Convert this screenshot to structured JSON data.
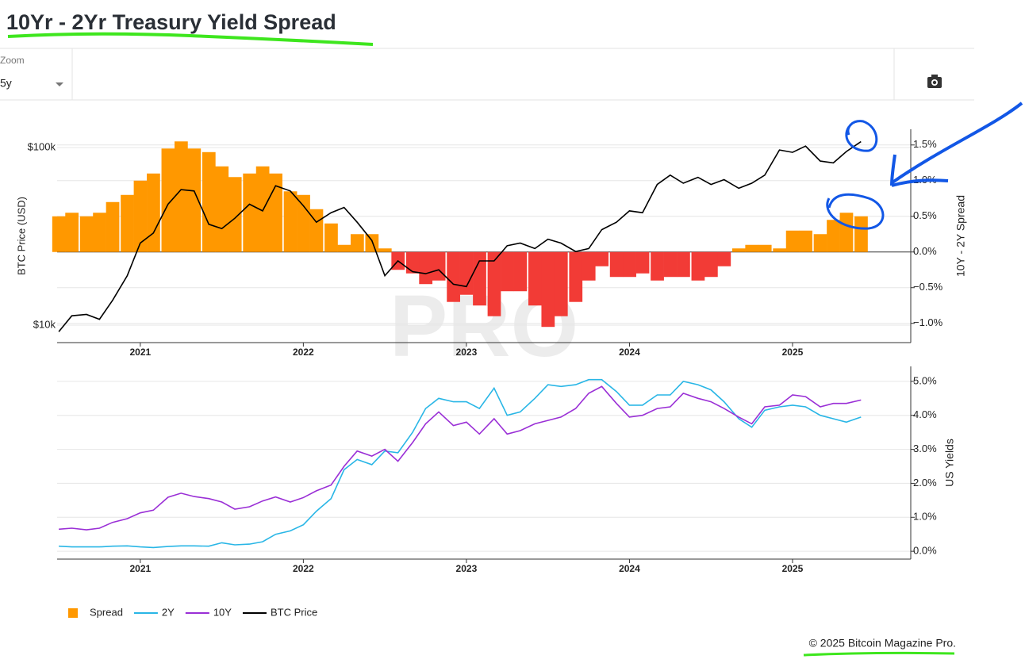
{
  "header": {
    "title": "10Yr - 2Yr Treasury Yield Spread",
    "zoom_label": "Zoom",
    "zoom_value": "5y"
  },
  "watermark": "PRO",
  "chart_data": [
    {
      "type": "combo",
      "x": [
        2020.5,
        2020.58,
        2020.67,
        2020.75,
        2020.83,
        2020.92,
        2021.0,
        2021.08,
        2021.17,
        2021.25,
        2021.33,
        2021.42,
        2021.5,
        2021.58,
        2021.67,
        2021.75,
        2021.83,
        2021.92,
        2022.0,
        2022.08,
        2022.17,
        2022.25,
        2022.33,
        2022.42,
        2022.5,
        2022.58,
        2022.67,
        2022.75,
        2022.83,
        2022.92,
        2023.0,
        2023.08,
        2023.17,
        2023.25,
        2023.33,
        2023.42,
        2023.5,
        2023.58,
        2023.67,
        2023.75,
        2023.83,
        2023.92,
        2024.0,
        2024.08,
        2024.17,
        2024.25,
        2024.33,
        2024.42,
        2024.5,
        2024.58,
        2024.67,
        2024.75,
        2024.83,
        2024.92,
        2025.0,
        2025.08,
        2025.17,
        2025.25,
        2025.33,
        2025.42
      ],
      "xlim": [
        2020.49,
        2025.725
      ],
      "xticks": [
        2021,
        2022,
        2023,
        2024,
        2025
      ],
      "ylim": [
        7980,
        126800
      ],
      "log_scale": "y",
      "yticks": [
        {
          "value": 10000,
          "label": "$10k"
        },
        {
          "value": 100000,
          "label": "$100k"
        }
      ],
      "y_label": "BTC Price (USD)",
      "y2lim": [
        -1.27,
        1.72
      ],
      "y2ticks": [
        {
          "value": -1,
          "label": "−1.0%"
        },
        {
          "value": -0.5,
          "label": "−0.5%"
        },
        {
          "value": 0,
          "label": "0.0%"
        },
        {
          "value": 0.5,
          "label": "0.5%"
        },
        {
          "value": 1,
          "label": "1.0%"
        },
        {
          "value": 1.5,
          "label": "1.5%"
        }
      ],
      "y2_label": "10Y - 2Y Spread",
      "grid": true,
      "legend": "bottom",
      "series": [
        {
          "name": "Spread",
          "type": "bar",
          "axis": "y2",
          "color": "#ff9800",
          "negative_color": "#f23b36",
          "values": [
            0.5,
            0.55,
            0.5,
            0.55,
            0.7,
            0.8,
            1.0,
            1.1,
            1.45,
            1.55,
            1.45,
            1.4,
            1.2,
            1.05,
            1.1,
            1.2,
            1.1,
            0.85,
            0.8,
            0.6,
            0.4,
            0.1,
            0.25,
            0.25,
            0.05,
            -0.25,
            -0.3,
            -0.45,
            -0.4,
            -0.7,
            -0.6,
            -0.75,
            -0.9,
            -0.55,
            -0.55,
            -0.75,
            -1.05,
            -0.9,
            -0.7,
            -0.4,
            -0.2,
            -0.35,
            -0.35,
            -0.3,
            -0.4,
            -0.35,
            -0.35,
            -0.4,
            -0.35,
            -0.2,
            0.05,
            0.1,
            0.1,
            0.05,
            0.3,
            0.3,
            0.25,
            0.45,
            0.55,
            0.5
          ]
        },
        {
          "name": "BTC Price",
          "type": "line",
          "color": "#000000",
          "values": [
            9200,
            11300,
            11500,
            10800,
            13800,
            19000,
            29000,
            33000,
            48000,
            58000,
            57000,
            37000,
            35000,
            40000,
            48000,
            44000,
            61000,
            57000,
            47000,
            38000,
            43000,
            46000,
            38000,
            30000,
            19000,
            23000,
            20000,
            19500,
            20500,
            17000,
            16500,
            23000,
            23000,
            28000,
            29000,
            27000,
            30500,
            29000,
            26000,
            27000,
            34500,
            38000,
            44000,
            43000,
            62000,
            70000,
            63000,
            68000,
            62000,
            66000,
            59000,
            63000,
            70000,
            97000,
            94000,
            102000,
            84000,
            82000,
            95000,
            108000
          ]
        }
      ]
    },
    {
      "type": "line",
      "x": [
        2020.5,
        2020.58,
        2020.67,
        2020.75,
        2020.83,
        2020.92,
        2021.0,
        2021.08,
        2021.17,
        2021.25,
        2021.33,
        2021.42,
        2021.5,
        2021.58,
        2021.67,
        2021.75,
        2021.83,
        2021.92,
        2022.0,
        2022.08,
        2022.17,
        2022.25,
        2022.33,
        2022.42,
        2022.5,
        2022.58,
        2022.67,
        2022.75,
        2022.83,
        2022.92,
        2023.0,
        2023.08,
        2023.17,
        2023.25,
        2023.33,
        2023.42,
        2023.5,
        2023.58,
        2023.67,
        2023.75,
        2023.83,
        2023.92,
        2024.0,
        2024.08,
        2024.17,
        2024.25,
        2024.33,
        2024.42,
        2024.5,
        2024.58,
        2024.67,
        2024.75,
        2024.83,
        2024.92,
        2025.0,
        2025.08,
        2025.17,
        2025.25,
        2025.33,
        2025.42
      ],
      "xlim": [
        2020.49,
        2025.725
      ],
      "xticks": [
        2021,
        2022,
        2023,
        2024,
        2025
      ],
      "ylim": [
        -0.23,
        5.44
      ],
      "yticks": [
        {
          "value": 0,
          "label": "0.0%"
        },
        {
          "value": 1,
          "label": "1.0%"
        },
        {
          "value": 2,
          "label": "2.0%"
        },
        {
          "value": 3,
          "label": "3.0%"
        },
        {
          "value": 4,
          "label": "4.0%"
        },
        {
          "value": 5,
          "label": "5.0%"
        }
      ],
      "y_label": "US Yields",
      "grid": true,
      "series": [
        {
          "name": "2Y",
          "color": "#29b6e6",
          "values": [
            0.15,
            0.13,
            0.13,
            0.13,
            0.15,
            0.16,
            0.13,
            0.11,
            0.14,
            0.16,
            0.16,
            0.15,
            0.25,
            0.19,
            0.21,
            0.28,
            0.5,
            0.6,
            0.78,
            1.18,
            1.55,
            2.4,
            2.7,
            2.55,
            2.95,
            2.9,
            3.5,
            4.2,
            4.5,
            4.4,
            4.4,
            4.2,
            4.8,
            4.0,
            4.1,
            4.5,
            4.9,
            4.85,
            4.9,
            5.05,
            5.05,
            4.7,
            4.3,
            4.3,
            4.6,
            4.6,
            5.0,
            4.9,
            4.75,
            4.4,
            3.9,
            3.65,
            4.15,
            4.25,
            4.3,
            4.25,
            4.0,
            3.9,
            3.8,
            3.95
          ]
        },
        {
          "name": "10Y",
          "color": "#9a2fd6",
          "values": [
            0.65,
            0.68,
            0.63,
            0.68,
            0.85,
            0.96,
            1.13,
            1.21,
            1.59,
            1.71,
            1.61,
            1.55,
            1.45,
            1.24,
            1.31,
            1.48,
            1.6,
            1.45,
            1.58,
            1.78,
            1.95,
            2.5,
            2.95,
            2.8,
            3.0,
            2.65,
            3.2,
            3.75,
            4.1,
            3.7,
            3.8,
            3.45,
            3.9,
            3.45,
            3.55,
            3.75,
            3.85,
            3.95,
            4.2,
            4.65,
            4.85,
            4.35,
            3.95,
            4.0,
            4.2,
            4.25,
            4.65,
            4.5,
            4.4,
            4.2,
            3.95,
            3.75,
            4.25,
            4.3,
            4.6,
            4.55,
            4.25,
            4.35,
            4.35,
            4.45
          ]
        }
      ]
    }
  ],
  "footer": "© 2025 Bitcoin Magazine Pro."
}
